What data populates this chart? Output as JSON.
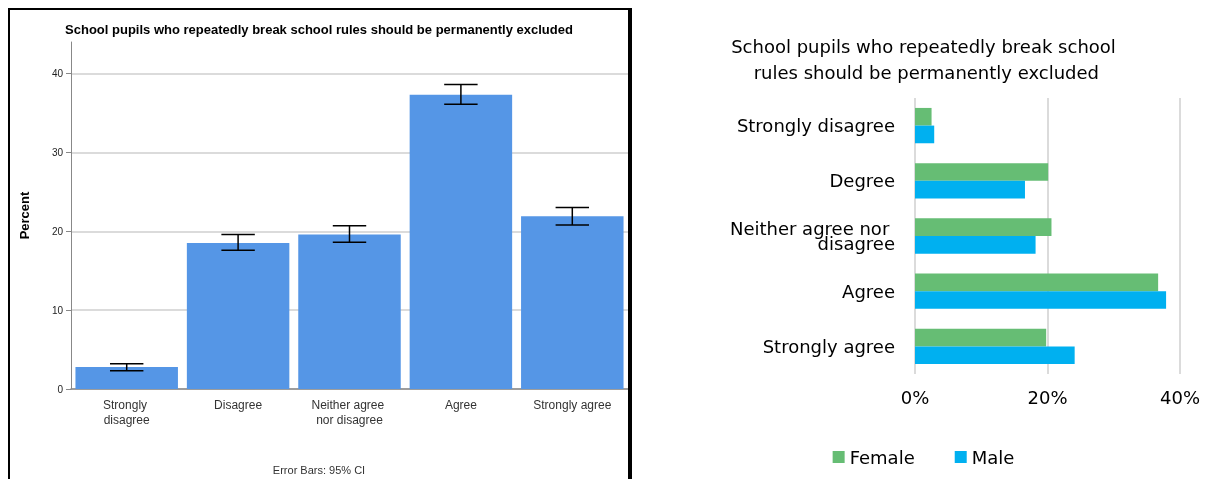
{
  "chart_data": [
    {
      "type": "bar",
      "title": "School pupils who repeatedly break school rules should be permanently excluded",
      "ylabel": "Percent",
      "categories": [
        "Strongly disagree",
        "Disagree",
        "Neither agree nor disagree",
        "Agree",
        "Strongly agree"
      ],
      "series": [
        {
          "color": "#5596e6",
          "values": [
            2.8,
            18.5,
            19.6,
            37.3,
            21.9
          ],
          "errors": [
            [
              2.3,
              3.2
            ],
            [
              17.6,
              19.6
            ],
            [
              18.6,
              20.7
            ],
            [
              36.1,
              38.6
            ],
            [
              20.8,
              23.0
            ]
          ]
        }
      ],
      "ylim": [
        0,
        44
      ],
      "yticks": [
        0,
        10,
        20,
        30,
        40
      ],
      "grid": "y",
      "legend": false,
      "annotations": [
        "Error Bars: 95% CI"
      ]
    },
    {
      "type": "bar",
      "orientation": "horizontal",
      "title": "School pupils who repeatedly break school rules should be permanently excluded",
      "categories": [
        "Strongly disagree",
        "Degree",
        "Neither agree nor disagree",
        "Agree",
        "Strongly agree"
      ],
      "series": [
        {
          "name": "Female",
          "color": "#66bd74",
          "values": [
            2.5,
            20.1,
            20.6,
            36.7,
            19.8
          ]
        },
        {
          "name": "Male",
          "color": "#00b0f0",
          "values": [
            2.9,
            16.6,
            18.2,
            37.9,
            24.1
          ]
        }
      ],
      "xlim": [
        0,
        40
      ],
      "xticks": [
        {
          "value": 0,
          "label": "0%"
        },
        {
          "value": 20,
          "label": "20%"
        },
        {
          "value": 40,
          "label": "40%"
        }
      ],
      "grid": "x",
      "legend": "bottom"
    }
  ]
}
